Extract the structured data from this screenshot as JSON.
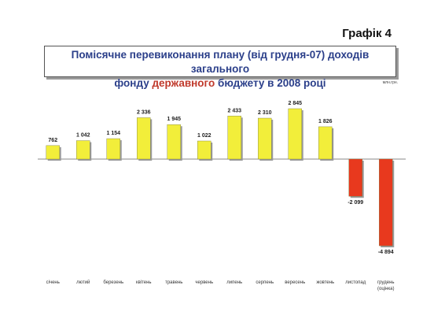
{
  "header": {
    "label": "Графік 4"
  },
  "title": {
    "line1": "Помісячне перевиконання плану (від грудня-07) доходів загального",
    "line2_part1": "фонду ",
    "line2_red": "державного",
    "line2_part2": " бюджету в 2008 році"
  },
  "unit": "млн.грн.",
  "colors": {
    "positive": "#f2ee3a",
    "negative": "#e8391e",
    "axis": "#888888"
  },
  "chart_data": {
    "type": "bar",
    "categories": [
      "січень",
      "лютий",
      "березень",
      "квітень",
      "травень",
      "червень",
      "липень",
      "серпень",
      "вересень",
      "жовтень",
      "листопад",
      "грудень"
    ],
    "category_extra": [
      "",
      "",
      "",
      "",
      "",
      "",
      "",
      "",
      "",
      "",
      "",
      "(оцінка)"
    ],
    "values": [
      762,
      1042,
      1154,
      2336,
      1945,
      1022,
      2433,
      2310,
      2845,
      1826,
      -2099,
      -4894
    ],
    "value_labels": [
      "762",
      "1 042",
      "1 154",
      "2 336",
      "1 945",
      "1 022",
      "2 433",
      "2 310",
      "2 845",
      "1 826",
      "-2 099",
      "-4 894"
    ],
    "title": "Помісячне перевиконання плану (від грудня-07) доходів загального фонду державного бюджету в 2008 році",
    "ylabel": "млн.грн."
  }
}
